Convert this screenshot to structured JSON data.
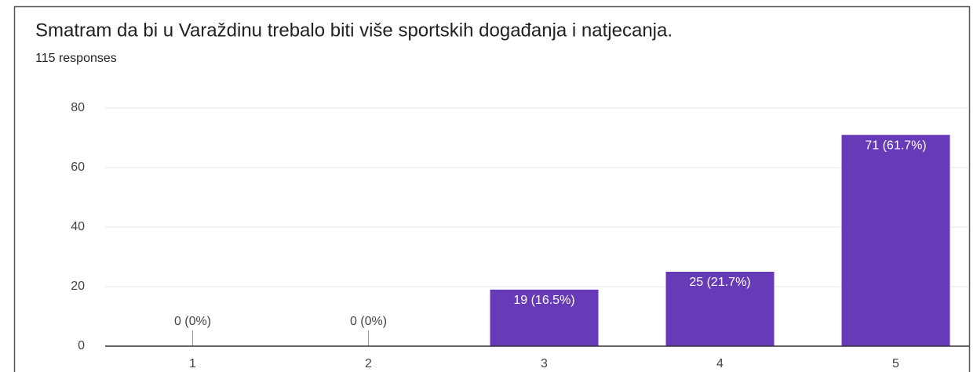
{
  "chart_data": {
    "type": "bar",
    "title": "Smatram da bi u Varaždinu trebalo biti više sportskih događanja i natjecanja.",
    "subtitle": "115 responses",
    "categories": [
      "1",
      "2",
      "3",
      "4",
      "5"
    ],
    "values": [
      0,
      0,
      19,
      25,
      71
    ],
    "value_labels": [
      "0 (0%)",
      "0 (0%)",
      "19 (16.5%)",
      "25 (21.7%)",
      "71 (61.7%)"
    ],
    "color": "#673ab7",
    "ylim": [
      0,
      80
    ],
    "yticks": [
      0,
      20,
      40,
      60,
      80
    ],
    "grid": true
  }
}
